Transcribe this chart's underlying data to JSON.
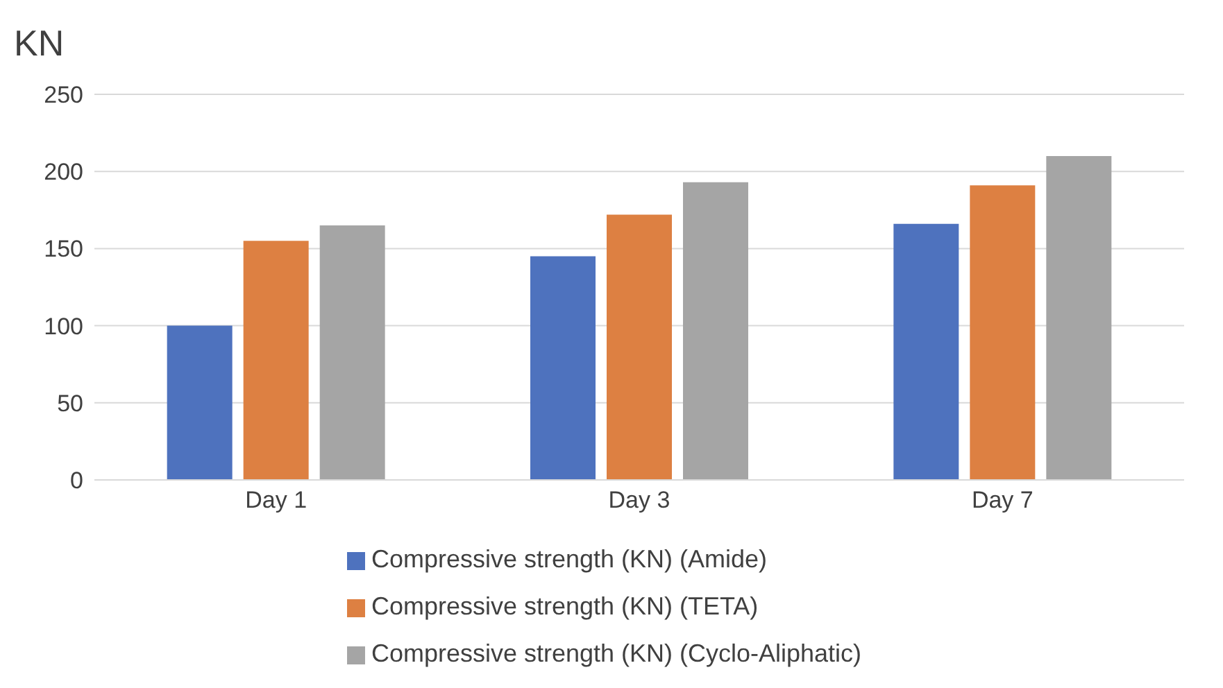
{
  "chart_data": {
    "type": "bar",
    "ylabel": "KN",
    "categories": [
      "Day 1",
      "Day 3",
      "Day 7"
    ],
    "series": [
      {
        "name": "Compressive strength (KN) (Amide)",
        "color": "#4e72be",
        "values": [
          100,
          145,
          166
        ]
      },
      {
        "name": "Compressive strength (KN) (TETA)",
        "color": "#dd8042",
        "values": [
          155,
          172,
          191
        ]
      },
      {
        "name": "Compressive strength (KN) (Cyclo-Aliphatic)",
        "color": "#a5a5a5",
        "values": [
          165,
          193,
          210
        ]
      }
    ],
    "ylim": [
      0,
      250
    ],
    "yticks": [
      0,
      50,
      100,
      150,
      200,
      250
    ],
    "grid": "y",
    "legend": "bottom"
  }
}
